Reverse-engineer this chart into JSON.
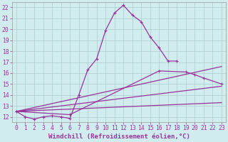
{
  "background_color": "#d0ecee",
  "grid_color": "#aacccc",
  "line_color": "#993399",
  "xlabel": "Windchill (Refroidissement éolien,°C)",
  "xlabel_fontsize": 6.5,
  "tick_fontsize": 5.8,
  "tick_color": "#993399",
  "xlim": [
    -0.5,
    23.5
  ],
  "ylim": [
    11.5,
    22.5
  ],
  "yticks": [
    12,
    13,
    14,
    15,
    16,
    17,
    18,
    19,
    20,
    21,
    22
  ],
  "xticks": [
    0,
    1,
    2,
    3,
    4,
    5,
    6,
    7,
    8,
    9,
    10,
    11,
    12,
    13,
    14,
    15,
    16,
    17,
    18,
    19,
    20,
    21,
    22,
    23
  ],
  "curve1_x": [
    0,
    1,
    2,
    3,
    4,
    5,
    6,
    7,
    8,
    9,
    10,
    11,
    12,
    13,
    14,
    15,
    16,
    17,
    18
  ],
  "curve1_y": [
    12.5,
    12.0,
    11.8,
    12.0,
    12.1,
    12.0,
    11.85,
    14.0,
    16.3,
    17.3,
    19.9,
    21.5,
    22.2,
    21.3,
    20.7,
    19.3,
    18.3,
    17.1,
    17.1
  ],
  "curve2_x": [
    0,
    6,
    16,
    19,
    20,
    21,
    23
  ],
  "curve2_y": [
    12.5,
    12.2,
    16.2,
    16.1,
    15.85,
    15.55,
    15.0
  ],
  "curve3_x": [
    0,
    23
  ],
  "curve3_y": [
    12.5,
    16.6
  ],
  "curve4_x": [
    0,
    23
  ],
  "curve4_y": [
    12.5,
    14.8
  ],
  "curve5_x": [
    0,
    23
  ],
  "curve5_y": [
    12.5,
    13.3
  ]
}
